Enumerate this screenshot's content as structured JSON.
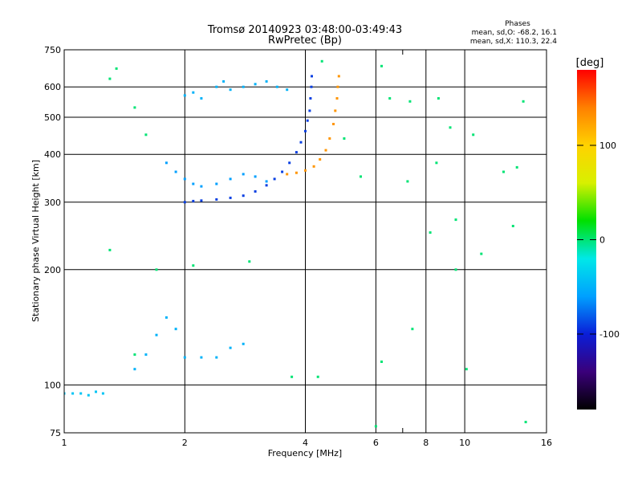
{
  "chart_data": {
    "type": "scatter",
    "title": "Tromsø 20140923 03:48:00-03:49:43",
    "subtitle": "RwPretec (Bp)",
    "xlabel": "Frequency [MHz]",
    "ylabel": "Stationary phase Virtual Height [km]",
    "x_scale": "log",
    "y_scale": "log",
    "xlim": [
      1,
      16
    ],
    "ylim": [
      75,
      750
    ],
    "x_ticks": [
      1,
      2,
      4,
      6,
      8,
      10,
      16
    ],
    "x_minor_ticks": [
      7
    ],
    "y_ticks": [
      75,
      100,
      200,
      300,
      400,
      500,
      600,
      750
    ],
    "grid": true,
    "phases_box": {
      "title": "Phases",
      "line1": "mean, sd,O: -68.2, 16.1",
      "line2": "mean, sd,X: 110.3, 22.4"
    },
    "colorbar": {
      "label": "[deg]",
      "range": [
        -180,
        180
      ],
      "ticks": [
        100,
        0,
        -100
      ],
      "colors": [
        "#000000",
        "#3a007a",
        "#0a1ed8",
        "#00a0ff",
        "#00e8e8",
        "#00e000",
        "#d8f000",
        "#ffd200",
        "#ff8000",
        "#ff0000"
      ]
    },
    "series": [
      {
        "role": "O-mode F-layer trace",
        "phase": -90,
        "points": [
          [
            2.0,
            300
          ],
          [
            2.1,
            302
          ],
          [
            2.2,
            303
          ],
          [
            2.4,
            305
          ],
          [
            2.6,
            308
          ],
          [
            2.8,
            312
          ],
          [
            3.0,
            320
          ],
          [
            3.2,
            332
          ],
          [
            3.35,
            345
          ],
          [
            3.5,
            360
          ],
          [
            3.65,
            380
          ],
          [
            3.8,
            405
          ],
          [
            3.9,
            430
          ],
          [
            4.0,
            460
          ],
          [
            4.05,
            490
          ],
          [
            4.1,
            520
          ],
          [
            4.12,
            560
          ],
          [
            4.14,
            600
          ],
          [
            4.15,
            640
          ]
        ]
      },
      {
        "role": "X-mode F-layer trace",
        "phase": 130,
        "points": [
          [
            3.6,
            355
          ],
          [
            3.8,
            358
          ],
          [
            4.0,
            363
          ],
          [
            4.2,
            372
          ],
          [
            4.35,
            388
          ],
          [
            4.5,
            410
          ],
          [
            4.6,
            440
          ],
          [
            4.7,
            480
          ],
          [
            4.75,
            520
          ],
          [
            4.8,
            560
          ],
          [
            4.82,
            600
          ],
          [
            4.85,
            640
          ]
        ]
      },
      {
        "role": "spread-F band",
        "phase": -60,
        "points": [
          [
            1.8,
            380
          ],
          [
            1.9,
            360
          ],
          [
            2.0,
            345
          ],
          [
            2.1,
            335
          ],
          [
            2.2,
            330
          ],
          [
            2.4,
            335
          ],
          [
            2.6,
            345
          ],
          [
            2.8,
            355
          ],
          [
            3.0,
            350
          ],
          [
            3.2,
            340
          ]
        ]
      },
      {
        "role": "upper echo cluster",
        "phase": -50,
        "points": [
          [
            2.0,
            570
          ],
          [
            2.1,
            580
          ],
          [
            2.2,
            560
          ],
          [
            2.4,
            600
          ],
          [
            2.5,
            620
          ],
          [
            2.6,
            590
          ],
          [
            2.8,
            600
          ],
          [
            3.0,
            610
          ],
          [
            3.2,
            620
          ],
          [
            3.4,
            600
          ],
          [
            3.6,
            590
          ]
        ]
      },
      {
        "role": "E-layer echoes",
        "phase": -50,
        "points": [
          [
            1.5,
            110
          ],
          [
            1.6,
            120
          ],
          [
            1.7,
            135
          ],
          [
            1.8,
            150
          ],
          [
            1.9,
            140
          ],
          [
            2.0,
            118
          ],
          [
            2.2,
            118
          ],
          [
            2.4,
            118
          ],
          [
            2.6,
            125
          ],
          [
            2.8,
            128
          ]
        ]
      },
      {
        "role": "low-frequency echoes",
        "phase": -40,
        "points": [
          [
            1.0,
            95
          ],
          [
            1.05,
            95
          ],
          [
            1.1,
            95
          ],
          [
            1.15,
            94
          ],
          [
            1.2,
            96
          ],
          [
            1.25,
            95
          ]
        ]
      },
      {
        "role": "scattered noise",
        "phase": 0,
        "points": [
          [
            1.3,
            630
          ],
          [
            1.35,
            670
          ],
          [
            1.5,
            530
          ],
          [
            1.6,
            450
          ],
          [
            1.3,
            225
          ],
          [
            1.5,
            120
          ],
          [
            1.7,
            200
          ],
          [
            2.1,
            205
          ],
          [
            2.9,
            210
          ],
          [
            4.4,
            700
          ],
          [
            5.0,
            440
          ],
          [
            5.5,
            350
          ],
          [
            6.2,
            680
          ],
          [
            6.5,
            560
          ],
          [
            7.2,
            340
          ],
          [
            7.3,
            550
          ],
          [
            7.4,
            140
          ],
          [
            8.2,
            250
          ],
          [
            8.5,
            380
          ],
          [
            8.6,
            560
          ],
          [
            9.2,
            470
          ],
          [
            9.5,
            270
          ],
          [
            10.1,
            110
          ],
          [
            10.5,
            450
          ],
          [
            11.0,
            220
          ],
          [
            12.5,
            360
          ],
          [
            13.2,
            260
          ],
          [
            13.5,
            370
          ],
          [
            14.0,
            550
          ],
          [
            14.2,
            80
          ],
          [
            6.2,
            115
          ],
          [
            9.5,
            200
          ],
          [
            6.0,
            78
          ],
          [
            4.3,
            105
          ],
          [
            3.7,
            105
          ]
        ]
      }
    ]
  }
}
